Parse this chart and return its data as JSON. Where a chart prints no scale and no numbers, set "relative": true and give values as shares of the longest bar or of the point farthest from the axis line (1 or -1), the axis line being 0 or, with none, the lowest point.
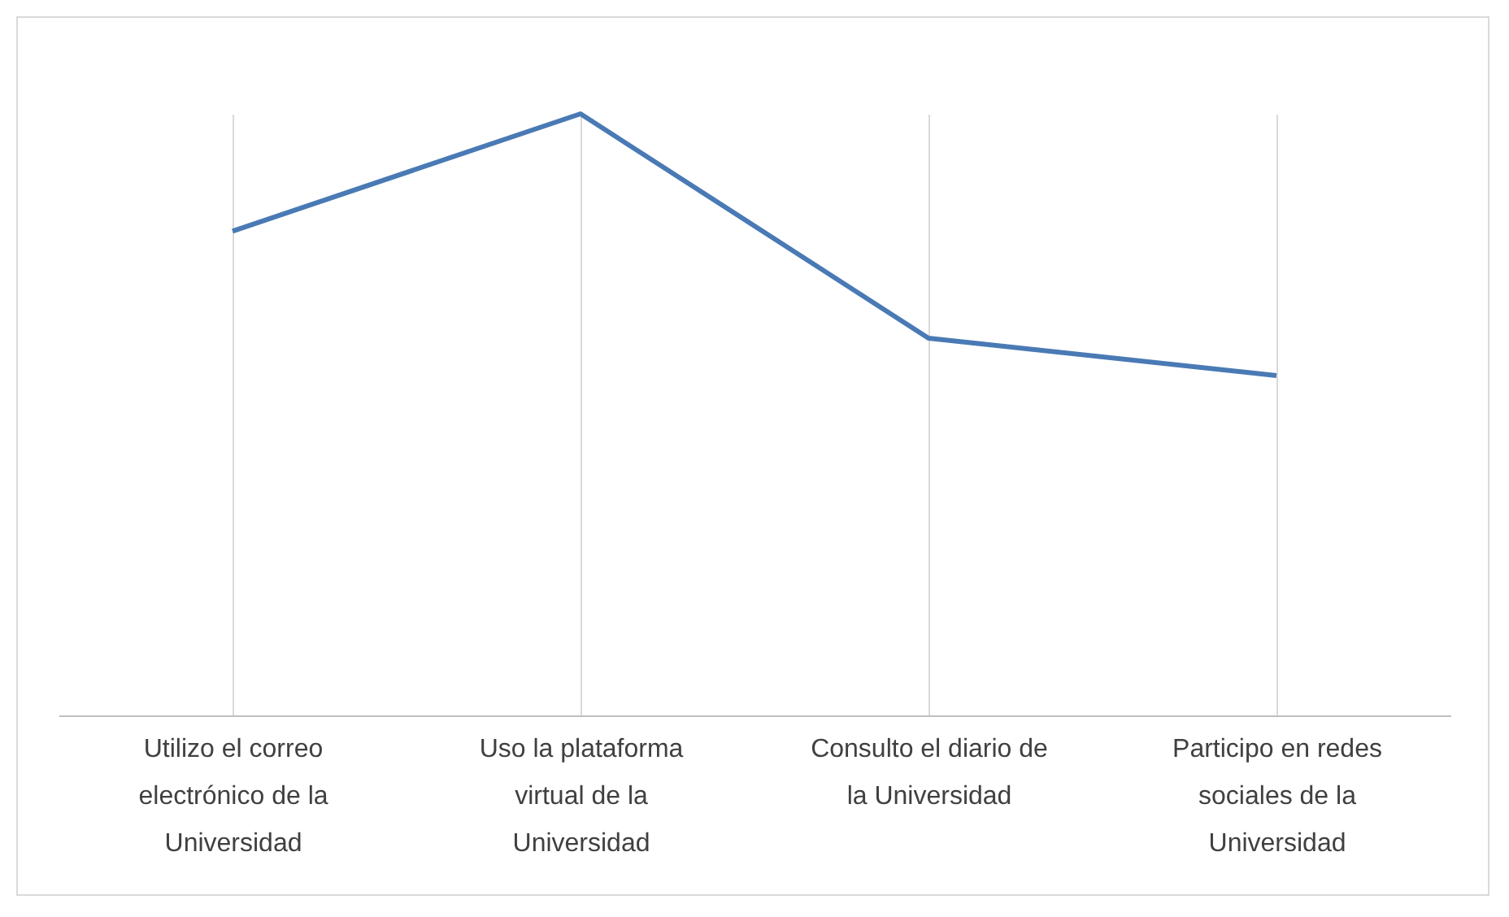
{
  "chart_data": {
    "type": "line",
    "relative": true,
    "categories": [
      "Utilizo el correo electrónico de la Universidad",
      "Uso la plataforma virtual de la Universidad",
      "Consulto el diario de la Universidad",
      "Participo en redes sociales de la Universidad"
    ],
    "series": [
      {
        "color": "#4a7ab5",
        "values": [
          0.805,
          1,
          0.627,
          0.565
        ]
      }
    ],
    "grid": "x",
    "marker": "none",
    "line_style": "solid"
  }
}
